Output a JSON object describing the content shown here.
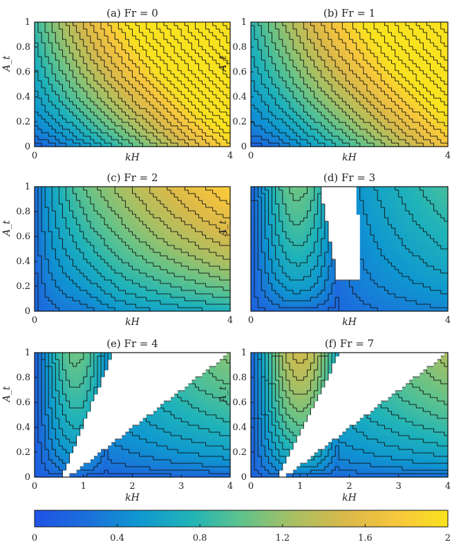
{
  "chart_data": [
    {
      "type": "heatmap",
      "title": "(a) Fr = 0",
      "xlabel": "kH",
      "ylabel": "A_t",
      "xlim": [
        0,
        4
      ],
      "ylim": [
        0,
        1
      ],
      "xticks": [
        "0",
        "4"
      ],
      "yticks": [
        "0",
        "0.2",
        "0.4",
        "0.6",
        "0.8",
        "1"
      ],
      "Fr": 0,
      "value_range": [
        0.07,
        1.8
      ],
      "contours": "black lines",
      "gaps": []
    },
    {
      "type": "heatmap",
      "title": "(b) Fr = 1",
      "xlabel": "kH",
      "ylabel": "A_t",
      "xlim": [
        0,
        4
      ],
      "ylim": [
        0,
        1
      ],
      "xticks": [
        "0",
        "4"
      ],
      "yticks": [
        "0",
        "0.2",
        "0.4",
        "0.6",
        "0.8",
        "1"
      ],
      "Fr": 1,
      "value_range": [
        0.1,
        1.7
      ],
      "contours": "black lines",
      "gaps": []
    },
    {
      "type": "heatmap",
      "title": "(c) Fr = 2",
      "xlabel": "kH",
      "ylabel": "A_t",
      "xlim": [
        0,
        4
      ],
      "ylim": [
        0,
        1
      ],
      "xticks": [
        "0",
        "4"
      ],
      "yticks": [
        "0",
        "0.2",
        "0.4",
        "0.6",
        "0.8",
        "1"
      ],
      "Fr": 2,
      "value_range": [
        0.1,
        1.45
      ],
      "contours": "black lines",
      "gaps": []
    },
    {
      "type": "heatmap",
      "title": "(d) Fr = 3",
      "xlabel": "kH",
      "ylabel": "A_t",
      "xlim": [
        0,
        4
      ],
      "ylim": [
        0,
        1
      ],
      "xticks": [
        "0",
        "4"
      ],
      "yticks": [],
      "Fr": 3,
      "value_range": [
        0.1,
        1.0
      ],
      "contours": "black lines",
      "gaps": [
        {
          "x_bottom_left": 1.75,
          "x_bottom_right": 2.25,
          "x_top_left": 1.4,
          "x_top_right": 2.15,
          "y_from": 0.25,
          "y_to": 1
        }
      ]
    },
    {
      "type": "heatmap",
      "title": "(e) Fr = 4",
      "xlabel": "kH",
      "ylabel": "A_t",
      "xlim": [
        0,
        4
      ],
      "ylim": [
        0,
        1
      ],
      "xticks": [
        "0",
        "1",
        "2",
        "3",
        "4"
      ],
      "yticks": [
        "0",
        "0.2",
        "0.4",
        "0.6",
        "0.8",
        "1"
      ],
      "Fr": 4,
      "value_range": [
        0.1,
        1.0
      ],
      "contours": "black lines",
      "gaps": [
        {
          "x_bottom_left": 0.55,
          "x_bottom_right": 0.7,
          "x_top_left": 1.6,
          "x_top_right": 4.0,
          "y_from": 0,
          "y_to": 1
        }
      ]
    },
    {
      "type": "heatmap",
      "title": "(f) Fr = 7",
      "xlabel": "kH",
      "ylabel": "A_t",
      "xlim": [
        0,
        4
      ],
      "ylim": [
        0,
        1
      ],
      "xticks": [
        "0",
        "1",
        "2",
        "3",
        "4"
      ],
      "yticks": [
        "0",
        "0.2",
        "0.4",
        "0.6",
        "0.8",
        "1"
      ],
      "Fr": 7,
      "value_range": [
        0.1,
        1.5
      ],
      "contours": "black lines",
      "gaps": [
        {
          "x_bottom_left": 0.55,
          "x_bottom_right": 0.7,
          "x_top_left": 1.8,
          "x_top_right": 4.0,
          "y_from": 0,
          "y_to": 1
        }
      ]
    }
  ],
  "colorbar": {
    "ticks": [
      "0",
      "0.4",
      "0.8",
      "1.2",
      "1.6",
      "2"
    ],
    "range": [
      0,
      2
    ],
    "colormap": [
      "#1f52e6",
      "#1b6fdb",
      "#0f97d0",
      "#1fb3b9",
      "#5fc38c",
      "#a8c063",
      "#d9b94a",
      "#f7c63d",
      "#f9e21f"
    ]
  }
}
